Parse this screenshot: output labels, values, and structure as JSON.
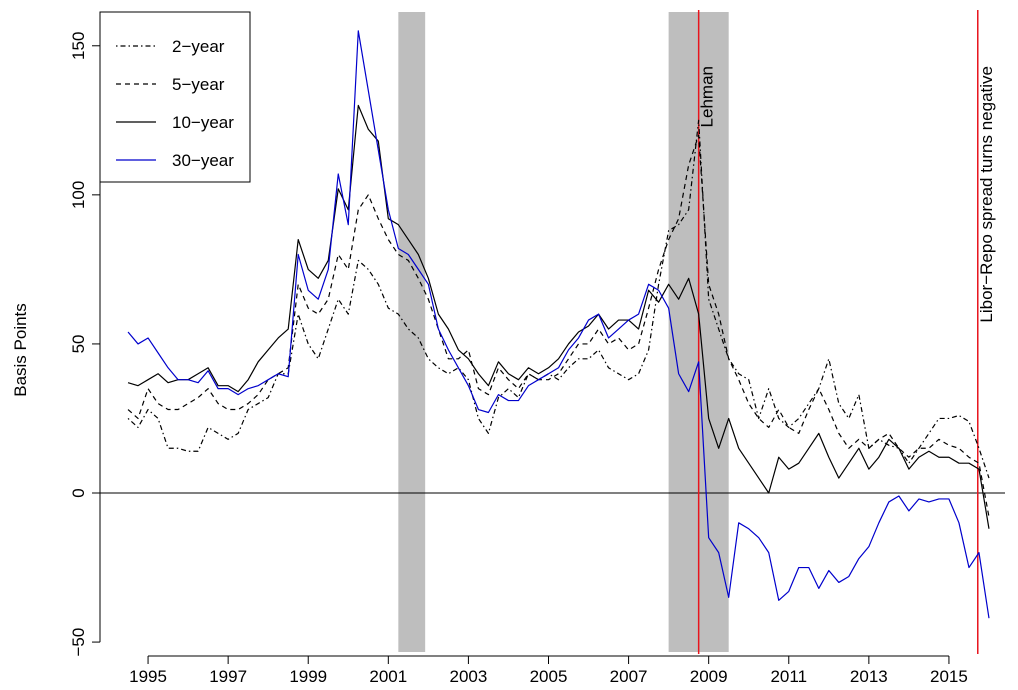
{
  "chart_data": {
    "type": "line",
    "ylabel": "Basis Points",
    "x": [
      1994.5,
      1994.75,
      1995,
      1995.25,
      1995.5,
      1995.75,
      1996,
      1996.25,
      1996.5,
      1996.75,
      1997,
      1997.25,
      1997.5,
      1997.75,
      1998,
      1998.25,
      1998.5,
      1998.75,
      1999,
      1999.25,
      1999.5,
      1999.75,
      2000,
      2000.25,
      2000.5,
      2000.75,
      2001,
      2001.25,
      2001.5,
      2001.75,
      2002,
      2002.25,
      2002.5,
      2002.75,
      2003,
      2003.25,
      2003.5,
      2003.75,
      2004,
      2004.25,
      2004.5,
      2004.75,
      2005,
      2005.25,
      2005.5,
      2005.75,
      2006,
      2006.25,
      2006.5,
      2006.75,
      2007,
      2007.25,
      2007.5,
      2007.75,
      2008,
      2008.25,
      2008.5,
      2008.75,
      2009,
      2009.25,
      2009.5,
      2009.75,
      2010,
      2010.25,
      2010.5,
      2010.75,
      2011,
      2011.25,
      2011.5,
      2011.75,
      2012,
      2012.25,
      2012.5,
      2012.75,
      2013,
      2013.25,
      2013.5,
      2013.75,
      2014,
      2014.25,
      2014.5,
      2014.75,
      2015,
      2015.25,
      2015.5,
      2015.75,
      2016
    ],
    "series": [
      {
        "name": "2−year",
        "color": "#000000",
        "linestyle": "dotdash",
        "values": [
          25,
          22,
          28,
          25,
          15,
          15,
          14,
          14,
          22,
          20,
          18,
          20,
          28,
          30,
          32,
          40,
          40,
          60,
          50,
          45,
          55,
          65,
          60,
          78,
          75,
          70,
          62,
          60,
          55,
          52,
          45,
          42,
          40,
          42,
          38,
          25,
          20,
          32,
          35,
          32,
          40,
          38,
          40,
          38,
          42,
          45,
          45,
          48,
          42,
          40,
          38,
          40,
          48,
          70,
          88,
          90,
          95,
          125,
          65,
          55,
          45,
          40,
          38,
          25,
          35,
          25,
          22,
          25,
          30,
          35,
          45,
          30,
          25,
          33,
          15,
          18,
          16,
          15,
          10,
          15,
          20,
          25,
          25,
          26,
          24,
          15,
          5
        ]
      },
      {
        "name": "5−year",
        "color": "#000000",
        "linestyle": "dashed",
        "values": [
          28,
          25,
          35,
          30,
          28,
          28,
          30,
          32,
          35,
          30,
          28,
          28,
          30,
          33,
          38,
          40,
          42,
          70,
          62,
          60,
          65,
          80,
          75,
          95,
          100,
          92,
          85,
          80,
          78,
          72,
          65,
          55,
          45,
          45,
          48,
          35,
          33,
          42,
          38,
          35,
          40,
          38,
          38,
          40,
          45,
          50,
          50,
          55,
          50,
          52,
          48,
          50,
          62,
          75,
          85,
          92,
          110,
          120,
          70,
          60,
          45,
          38,
          30,
          25,
          22,
          28,
          22,
          20,
          28,
          35,
          28,
          20,
          15,
          18,
          15,
          18,
          20,
          15,
          12,
          15,
          15,
          18,
          16,
          15,
          12,
          10,
          -8
        ]
      },
      {
        "name": "10−year",
        "color": "#000000",
        "linestyle": "solid",
        "values": [
          37,
          36,
          38,
          40,
          37,
          38,
          38,
          40,
          42,
          36,
          36,
          34,
          38,
          44,
          48,
          52,
          55,
          85,
          75,
          72,
          78,
          102,
          95,
          130,
          122,
          118,
          92,
          90,
          85,
          80,
          72,
          60,
          55,
          48,
          45,
          40,
          36,
          44,
          40,
          38,
          42,
          40,
          42,
          45,
          50,
          54,
          56,
          60,
          55,
          58,
          58,
          55,
          68,
          64,
          70,
          65,
          72,
          60,
          25,
          15,
          25,
          15,
          10,
          5,
          0,
          12,
          8,
          10,
          15,
          20,
          12,
          5,
          10,
          15,
          8,
          12,
          18,
          15,
          8,
          12,
          14,
          12,
          12,
          10,
          10,
          8,
          -12
        ]
      },
      {
        "name": "30−year",
        "color": "#0000cc",
        "linestyle": "solid",
        "values": [
          54,
          50,
          52,
          47,
          42,
          38,
          38,
          37,
          41,
          35,
          35,
          33,
          35,
          36,
          38,
          40,
          39,
          80,
          68,
          65,
          75,
          107,
          90,
          155,
          135,
          115,
          95,
          82,
          80,
          75,
          70,
          55,
          48,
          42,
          36,
          28,
          27,
          33,
          31,
          31,
          36,
          38,
          40,
          42,
          48,
          52,
          58,
          60,
          52,
          55,
          58,
          60,
          70,
          68,
          62,
          40,
          34,
          44,
          -15,
          -20,
          -35,
          -10,
          -12,
          -15,
          -20,
          -36,
          -33,
          -25,
          -25,
          -32,
          -26,
          -30,
          -28,
          -22,
          -18,
          -10,
          -3,
          -1,
          -6,
          -2,
          -3,
          -2,
          -2,
          -10,
          -25,
          -20,
          -42
        ]
      }
    ],
    "xlim": [
      1993.8,
      2016.4
    ],
    "xticks": [
      1995,
      1997,
      1999,
      2001,
      2003,
      2005,
      2007,
      2009,
      2011,
      2013,
      2015
    ],
    "ylim": [
      -54,
      162
    ],
    "yticks": [
      {
        "value": -50,
        "label": "−50"
      },
      0,
      50,
      100,
      150
    ],
    "hline": 0,
    "shaded_periods": [
      [
        2001.25,
        2001.92
      ],
      [
        2008.0,
        2009.5
      ]
    ],
    "shade_color": "#bebebe",
    "vlines": [
      {
        "x": 2008.75,
        "label": "Lehman"
      },
      {
        "x": 2015.72,
        "label": "Libor−Repo spread turns negative"
      }
    ],
    "vline_color": "#e8141c",
    "legend": "top-left"
  }
}
